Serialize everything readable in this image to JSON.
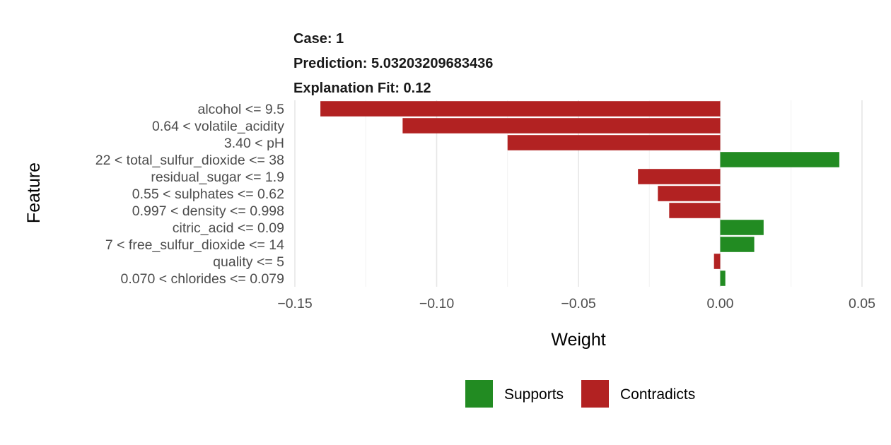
{
  "chart_data": {
    "type": "bar",
    "orientation": "horizontal",
    "header": {
      "case_label": "Case: 1",
      "prediction_label": "Prediction: 5.03203209683436",
      "fit_label": "Explanation Fit: 0.12"
    },
    "xlabel": "Weight",
    "ylabel": "Feature",
    "xlim": [
      -0.15,
      0.05
    ],
    "x_ticks": [
      -0.15,
      -0.1,
      -0.05,
      0.0,
      0.05
    ],
    "x_tick_labels": [
      "−0.15",
      "−0.10",
      "−0.05",
      "0.00",
      "0.05"
    ],
    "grid": true,
    "legend_position": "bottom",
    "legend": [
      {
        "label": "Supports",
        "color": "#228B22"
      },
      {
        "label": "Contradicts",
        "color": "#B22222"
      }
    ],
    "colors": {
      "Supports": "#228B22",
      "Contradicts": "#B22222"
    },
    "features": [
      {
        "label": "alcohol <= 9.5",
        "weight": -0.141
      },
      {
        "label": "0.64 < volatile_acidity",
        "weight": -0.112
      },
      {
        "label": "3.40 < pH",
        "weight": -0.075
      },
      {
        "label": "22 < total_sulfur_dioxide <= 38",
        "weight": 0.042
      },
      {
        "label": "residual_sugar <= 1.9",
        "weight": -0.029
      },
      {
        "label": "0.55 < sulphates <= 0.62",
        "weight": -0.022
      },
      {
        "label": "0.997 < density <= 0.998",
        "weight": -0.018
      },
      {
        "label": "citric_acid <= 0.09",
        "weight": 0.0153
      },
      {
        "label": "7 < free_sulfur_dioxide <= 14",
        "weight": 0.012
      },
      {
        "label": "quality <= 5",
        "weight": -0.0022
      },
      {
        "label": "0.070 < chlorides <= 0.079",
        "weight": 0.0018
      }
    ]
  }
}
